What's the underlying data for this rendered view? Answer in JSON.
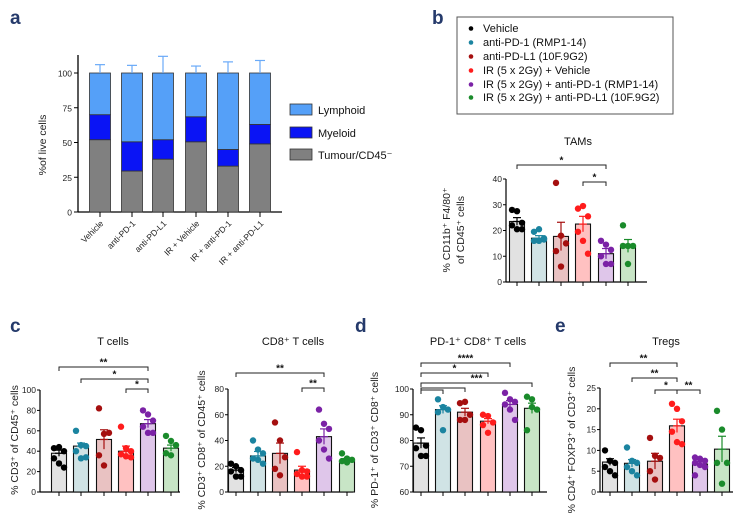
{
  "panel_labels": [
    "a",
    "b",
    "c",
    "d",
    "e"
  ],
  "group_colors": [
    "#000000",
    "#1b84a0",
    "#a50f0f",
    "#ff1c1c",
    "#7b22a6",
    "#1a8b2b"
  ],
  "bar_fills": [
    "#e2e2e2",
    "#d0e3e5",
    "#e9c2c2",
    "#ffc1c1",
    "#dfc6ea",
    "#c8e5c6"
  ],
  "legend": {
    "items": [
      "Vehicle",
      "anti-PD-1 (RMP1-14)",
      "anti-PD-L1 (10F.9G2)",
      "IR (5 x 2Gy) + Vehicle",
      "IR (5 x 2Gy) + anti-PD-1 (RMP1-14)",
      "IR (5 x 2Gy) + anti-PD-L1 (10F.9G2)"
    ]
  },
  "chart_data": [
    {
      "panel": "a",
      "type": "bar",
      "stacked": true,
      "ylabel": "%of live cells",
      "ylim": [
        0,
        100
      ],
      "yticks": [
        0,
        25,
        50,
        75,
        100
      ],
      "categories": [
        "Vehicle",
        "anti-PD-1",
        "anti-PD-L1",
        "IR + Vehicle",
        "IR + anti-PD-1",
        "IR + anti-PD-L1"
      ],
      "legend_position": "right",
      "series": [
        {
          "name": "Tumour/CD45⁻",
          "color": "#808080",
          "values": [
            52,
            29.5,
            38,
            50.5,
            33,
            49
          ],
          "error_top": [
            60,
            36,
            50,
            58,
            42,
            62.5
          ]
        },
        {
          "name": "Myeloid",
          "color": "#0a14f5",
          "values": [
            18,
            21,
            14,
            18,
            12,
            14
          ],
          "error_top": [
            72.5,
            52,
            53,
            71.5,
            47,
            68
          ]
        },
        {
          "name": "Lymphoid",
          "color": "#55a0f8",
          "values": [
            30,
            49.5,
            48,
            31.5,
            55,
            37
          ],
          "error_top": [
            106,
            105.5,
            112,
            105,
            108,
            109
          ]
        }
      ]
    },
    {
      "panel": "b",
      "type": "bar",
      "title": "TAMs",
      "ylabel": [
        "% CD11b⁺ F4/80⁺",
        "of CD45⁺ cells"
      ],
      "ylim": [
        0,
        40
      ],
      "yticks": [
        0,
        10,
        20,
        30,
        40
      ],
      "means": [
        23.5,
        17,
        17.7,
        22.5,
        11,
        14
      ],
      "sem_top": [
        25,
        18,
        23.2,
        25.5,
        13,
        16.5
      ],
      "points": [
        [
          28,
          27.5,
          23,
          22,
          20.5,
          20.5
        ],
        [
          19.5,
          20.5,
          17,
          16,
          16,
          16.5
        ],
        [
          38.5,
          18,
          15,
          12,
          6
        ],
        [
          28.5,
          29.5,
          25.5,
          19.5,
          16,
          11
        ],
        [
          16,
          14.5,
          12.5,
          10,
          7,
          7
        ],
        [
          22,
          14,
          14,
          14,
          7
        ]
      ],
      "significance": [
        {
          "from": 0,
          "to": 4,
          "label": "*"
        },
        {
          "from": 3,
          "to": 4,
          "label": "*"
        }
      ]
    },
    {
      "panel": "c",
      "type": "bar",
      "title": "T cells",
      "ylabel": [
        "% CD3⁺ of CD45⁺ cells"
      ],
      "ylim": [
        0,
        100
      ],
      "yticks": [
        0,
        20,
        40,
        60,
        80,
        100
      ],
      "means": [
        38,
        45,
        51.5,
        40,
        67,
        43
      ],
      "sem_top": [
        41,
        48,
        61,
        45,
        71,
        46
      ],
      "points": [
        [
          43,
          44,
          40,
          33,
          28,
          24
        ],
        [
          60,
          46,
          45,
          40,
          33,
          34
        ],
        [
          82,
          57,
          58,
          36,
          26
        ],
        [
          64,
          43,
          40,
          37,
          35,
          34
        ],
        [
          80,
          76,
          70,
          64,
          58,
          58
        ],
        [
          55,
          50,
          46,
          38,
          36
        ]
      ],
      "significance": [
        {
          "from": 0,
          "to": 4,
          "label": "**"
        },
        {
          "from": 1,
          "to": 4,
          "label": "*"
        },
        {
          "from": 3,
          "to": 4,
          "label": "*"
        }
      ]
    },
    {
      "panel": "c2",
      "type": "bar",
      "title": "CD8⁺ T cells",
      "ylabel": [
        "% CD3⁺ CD8⁺ of CD45⁺ cells"
      ],
      "ylim": [
        0,
        80
      ],
      "yticks": [
        0,
        20,
        40,
        60,
        80
      ],
      "means": [
        17,
        28,
        30,
        17,
        43,
        24
      ],
      "sem_top": [
        19,
        31.5,
        38,
        20,
        49,
        26
      ],
      "points": [
        [
          22,
          20,
          17,
          16,
          12,
          12
        ],
        [
          40,
          33,
          30,
          26,
          25,
          22
        ],
        [
          54,
          40,
          27,
          18,
          13
        ],
        [
          31,
          17,
          16,
          14,
          12,
          12
        ],
        [
          64,
          53,
          49,
          40,
          33,
          26
        ],
        [
          30,
          26,
          25,
          24,
          23
        ]
      ],
      "significance": [
        {
          "from": 0,
          "to": 4,
          "label": "**"
        },
        {
          "from": 3,
          "to": 4,
          "label": "**"
        }
      ]
    },
    {
      "panel": "d",
      "type": "bar",
      "title": "PD-1⁺ CD8⁺ T cells",
      "ylabel": [
        "% PD-1⁺ of CD3⁺ CD8⁺ cells"
      ],
      "ylim": [
        60,
        100
      ],
      "yticks": [
        60,
        70,
        80,
        90,
        100
      ],
      "means": [
        79,
        92,
        91,
        87.5,
        94,
        92.5
      ],
      "sem_top": [
        81,
        93.5,
        92.5,
        88.5,
        95.5,
        94.5
      ],
      "points": [
        [
          85,
          84,
          78,
          77,
          74,
          74
        ],
        [
          96,
          93,
          92,
          91,
          84
        ],
        [
          94.5,
          95,
          90,
          88,
          88
        ],
        [
          90,
          89.5,
          87,
          86,
          83
        ],
        [
          98.5,
          96,
          95,
          94,
          92,
          88
        ],
        [
          97,
          96,
          92,
          84,
          93
        ]
      ],
      "significance": [
        {
          "from": 0,
          "to": 4,
          "label": "****"
        },
        {
          "from": 0,
          "to": 3,
          "label": "*"
        },
        {
          "from": 0,
          "to": 5,
          "label": "***"
        },
        {
          "from": 0,
          "to": 2,
          "label": ""
        },
        {
          "from": 0,
          "to": 1,
          "label": ""
        }
      ]
    },
    {
      "panel": "e",
      "type": "bar",
      "title": "Tregs",
      "ylabel": [
        "% CD4⁺ FOXP3⁺ of CD3⁺ cells"
      ],
      "ylim": [
        0,
        25
      ],
      "yticks": [
        0,
        5,
        10,
        15,
        20,
        25
      ],
      "means": [
        7.2,
        6.9,
        7.4,
        15.9,
        6.7,
        10.3
      ],
      "sem_top": [
        8,
        7.8,
        9.3,
        17.5,
        7.3,
        13.4
      ],
      "points": [
        [
          10,
          7.5,
          7,
          6,
          5,
          4
        ],
        [
          10.7,
          7.5,
          7,
          6,
          5,
          4
        ],
        [
          13,
          8.7,
          8.2,
          5,
          3
        ],
        [
          21.2,
          20,
          17,
          14.5,
          12,
          11.5
        ],
        [
          8.3,
          8,
          7.5,
          7,
          6.5,
          6,
          4
        ],
        [
          19.5,
          15,
          7,
          7,
          2
        ]
      ],
      "significance": [
        {
          "from": 0,
          "to": 3,
          "label": "**"
        },
        {
          "from": 1,
          "to": 3,
          "label": "**"
        },
        {
          "from": 2,
          "to": 3,
          "label": "*"
        },
        {
          "from": 3,
          "to": 4,
          "label": "**"
        }
      ]
    }
  ]
}
